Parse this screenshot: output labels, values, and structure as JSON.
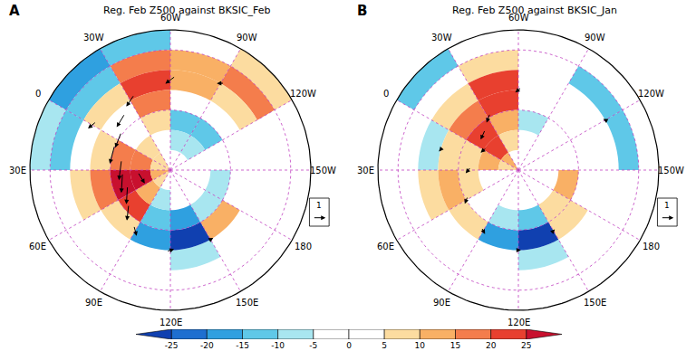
{
  "chart_data": {
    "type": "polar_map",
    "lon_centers": [
      -165,
      -135,
      -105,
      -75,
      -45,
      -15,
      15,
      45,
      75,
      105,
      135,
      165
    ],
    "lat_edges": [
      20,
      30,
      40,
      50,
      60,
      70,
      80,
      90
    ],
    "lat_lines": [
      30,
      60
    ],
    "lon_labels": [
      {
        "lon": -30,
        "label": "30W"
      },
      {
        "lon": -60,
        "label": "60W"
      },
      {
        "lon": -90,
        "label": "90W"
      },
      {
        "lon": -120,
        "label": "120W"
      },
      {
        "lon": -150,
        "label": "150W"
      },
      {
        "lon": 180,
        "label": "180"
      },
      {
        "lon": 150,
        "label": "150E"
      },
      {
        "lon": 120,
        "label": "120E"
      },
      {
        "lon": 90,
        "label": "90E"
      },
      {
        "lon": 60,
        "label": "60E"
      },
      {
        "lon": 30,
        "label": "30E"
      },
      {
        "lon": 0,
        "label": "0"
      }
    ],
    "colorbar": {
      "range": [
        -30,
        30
      ],
      "ticks": [
        -25,
        -20,
        -15,
        -10,
        -5,
        0,
        5,
        10,
        15,
        20,
        25
      ]
    },
    "panels": [
      {
        "label": "A",
        "title": "Reg. Feb Z500 against BKSIC_Feb",
        "reference_vector": 1,
        "cells": [
          [
            0,
            0,
            5,
            0,
            -10,
            -15,
            -5,
            0,
            0,
            0,
            0,
            0
          ],
          [
            0,
            0,
            15,
            10,
            15,
            -10,
            -10,
            0,
            0,
            0,
            0,
            0
          ],
          [
            0,
            0,
            5,
            10,
            20,
            5,
            0,
            5,
            0,
            0,
            -5,
            0
          ],
          [
            0,
            0,
            0,
            0,
            15,
            0,
            5,
            15,
            5,
            -15,
            -25,
            10
          ],
          [
            -5,
            0,
            -10,
            -10,
            5,
            0,
            15,
            25,
            20,
            -10,
            -15,
            -5
          ],
          [
            0,
            0,
            -5,
            -5,
            0,
            5,
            15,
            25,
            10,
            -5,
            0,
            0
          ],
          [
            0,
            0,
            0,
            0,
            0,
            5,
            5,
            10,
            5,
            0,
            0,
            0
          ]
        ],
        "vectors": [
          [
            -30,
            50,
            1.0,
            0.5
          ],
          [
            -15,
            55,
            1.2,
            0.3
          ],
          [
            0,
            60,
            1.3,
            0.2
          ],
          [
            15,
            60,
            1.5,
            0
          ],
          [
            30,
            65,
            1.6,
            -0.2
          ],
          [
            45,
            65,
            1.5,
            -0.5
          ],
          [
            60,
            65,
            1.2,
            -0.8
          ],
          [
            75,
            60,
            0.8,
            -1.0
          ],
          [
            90,
            55,
            0.6,
            -0.6
          ],
          [
            -60,
            45,
            0.8,
            0.6
          ],
          [
            -90,
            40,
            0.5,
            0.3
          ],
          [
            120,
            50,
            0.6,
            0.2
          ],
          [
            150,
            50,
            0.5,
            0
          ],
          [
            45,
            75,
            1.0,
            0.3
          ],
          [
            0,
            45,
            0.8,
            -0.3
          ]
        ]
      },
      {
        "label": "B",
        "title": "Reg. Feb Z500 against BKSIC_Jan",
        "reference_vector": 1,
        "cells": [
          [
            0,
            0,
            0,
            0,
            0,
            -10,
            0,
            0,
            0,
            0,
            0,
            0
          ],
          [
            0,
            -10,
            -10,
            0,
            5,
            0,
            0,
            0,
            0,
            0,
            0,
            0
          ],
          [
            0,
            0,
            0,
            0,
            20,
            5,
            -5,
            5,
            0,
            0,
            -5,
            0
          ],
          [
            0,
            0,
            0,
            0,
            20,
            15,
            5,
            10,
            5,
            -15,
            -25,
            5
          ],
          [
            10,
            0,
            0,
            -5,
            10,
            20,
            5,
            5,
            0,
            -5,
            -10,
            5
          ],
          [
            0,
            0,
            0,
            0,
            5,
            20,
            10,
            0,
            0,
            0,
            0,
            0
          ],
          [
            0,
            0,
            0,
            0,
            0,
            10,
            5,
            0,
            0,
            0,
            0,
            0
          ]
        ],
        "vectors": [
          [
            -30,
            60,
            0.6,
            0.5
          ],
          [
            -15,
            65,
            0.8,
            0.3
          ],
          [
            0,
            70,
            0.6,
            -0.2
          ],
          [
            30,
            65,
            0.5,
            -0.4
          ],
          [
            60,
            60,
            0.4,
            -0.5
          ],
          [
            90,
            55,
            0.5,
            -0.3
          ],
          [
            120,
            50,
            0.4,
            0
          ],
          [
            150,
            55,
            0.3,
            0.1
          ],
          [
            -60,
            50,
            0.5,
            0.4
          ],
          [
            -120,
            40,
            0.3,
            0.2
          ],
          [
            15,
            50,
            0.4,
            -0.2
          ]
        ]
      }
    ]
  }
}
